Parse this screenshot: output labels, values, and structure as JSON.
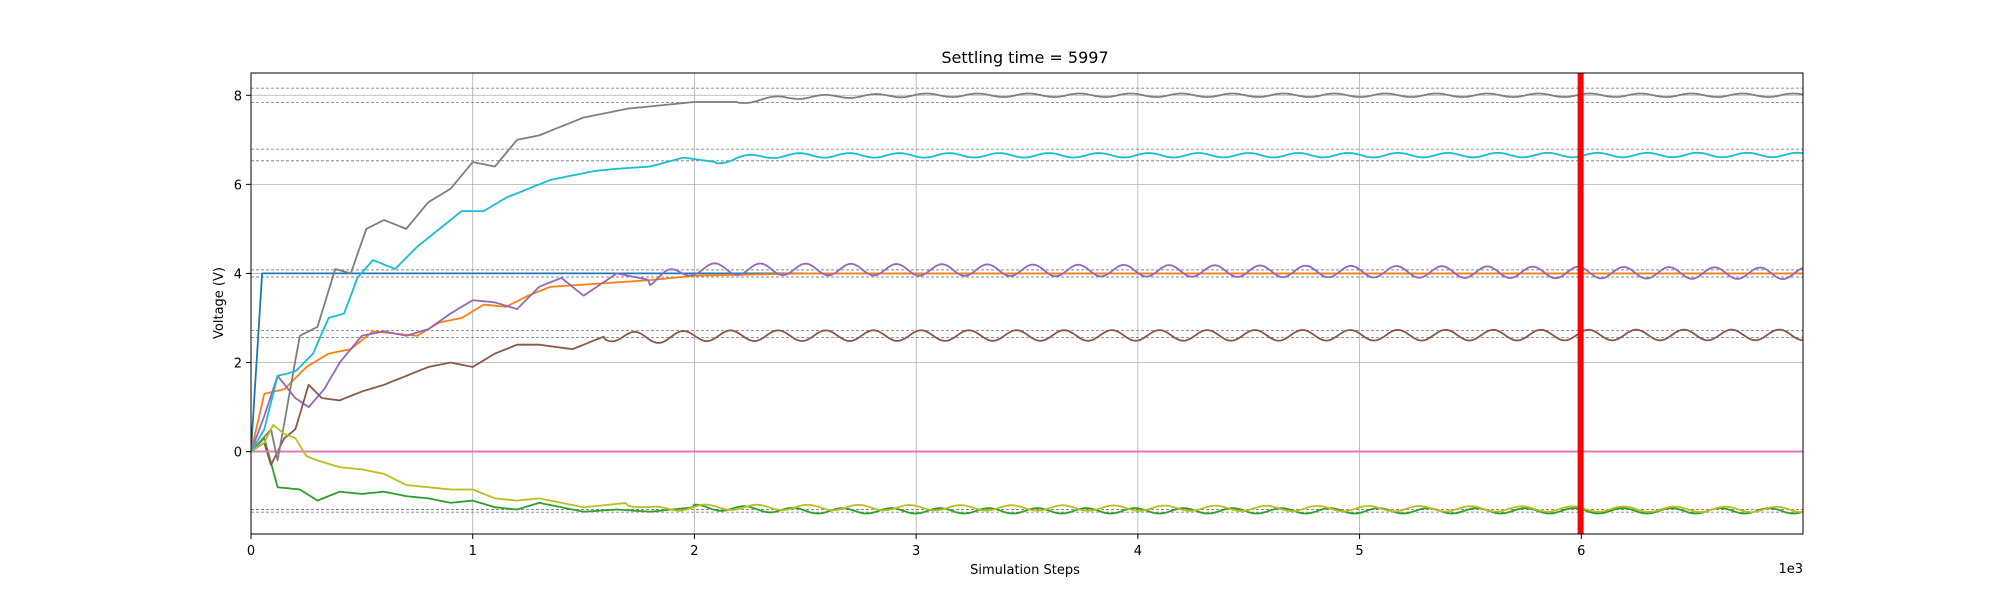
{
  "chart_data": {
    "type": "line",
    "title": "Settling time = 5997",
    "xlabel": "Simulation Steps",
    "ylabel": "Voltage (V)",
    "x_offset_label": "1e3",
    "xlim": [
      0,
      7000
    ],
    "ylim": [
      -1.85,
      8.5
    ],
    "xticks": [
      0,
      1000,
      2000,
      3000,
      4000,
      5000,
      6000
    ],
    "xtick_labels": [
      "0",
      "1",
      "2",
      "3",
      "4",
      "5",
      "6"
    ],
    "yticks": [
      0,
      2,
      4,
      6,
      8
    ],
    "ytick_labels": [
      "0",
      "2",
      "4",
      "6",
      "8"
    ],
    "grid": true,
    "settling_marker": {
      "x": 5997,
      "color": "#ff0000"
    },
    "tolerance_bands": [
      {
        "lower": 7.84,
        "upper": 8.16
      },
      {
        "lower": 6.53,
        "upper": 6.79
      },
      {
        "lower": 3.92,
        "upper": 4.08
      },
      {
        "lower": 2.56,
        "upper": 2.72
      },
      {
        "lower": -1.36,
        "upper": -1.3
      }
    ],
    "series": [
      {
        "color": "#1f77b4",
        "points": [
          [
            0,
            0
          ],
          [
            50,
            4.0
          ],
          [
            7000,
            4.0
          ]
        ]
      },
      {
        "color": "#ff7f0e",
        "points": [
          [
            0,
            0
          ],
          [
            60,
            1.3
          ],
          [
            150,
            1.4
          ],
          [
            250,
            1.9
          ],
          [
            350,
            2.2
          ],
          [
            450,
            2.3
          ],
          [
            550,
            2.7
          ],
          [
            650,
            2.65
          ],
          [
            750,
            2.6
          ],
          [
            850,
            2.9
          ],
          [
            950,
            3.0
          ],
          [
            1050,
            3.3
          ],
          [
            1150,
            3.25
          ],
          [
            1250,
            3.5
          ],
          [
            1350,
            3.7
          ],
          [
            1500,
            3.75
          ],
          [
            1650,
            3.8
          ],
          [
            1800,
            3.85
          ],
          [
            2000,
            3.95
          ],
          [
            2500,
            4.0
          ],
          [
            7000,
            4.0
          ]
        ]
      },
      {
        "color": "#2ca02c",
        "points": [
          [
            0,
            0
          ],
          [
            60,
            0.3
          ],
          [
            120,
            -0.8
          ],
          [
            220,
            -0.85
          ],
          [
            300,
            -1.1
          ],
          [
            400,
            -0.9
          ],
          [
            500,
            -0.95
          ],
          [
            600,
            -0.9
          ],
          [
            700,
            -1.0
          ],
          [
            800,
            -1.05
          ],
          [
            900,
            -1.15
          ],
          [
            1000,
            -1.1
          ],
          [
            1100,
            -1.25
          ],
          [
            1200,
            -1.3
          ],
          [
            1300,
            -1.15
          ],
          [
            1400,
            -1.25
          ],
          [
            1500,
            -1.35
          ],
          [
            1650,
            -1.3
          ],
          [
            1800,
            -1.35
          ],
          [
            2000,
            -1.25
          ],
          [
            2500,
            -1.33
          ],
          [
            7000,
            -1.33
          ]
        ],
        "osc": {
          "start": 2000,
          "amp": 0.06,
          "period": 220,
          "phase": 0.8
        }
      },
      {
        "color": "#d62728",
        "points": [
          [
            0,
            0
          ],
          [
            7000,
            0
          ]
        ]
      },
      {
        "color": "#9467bd",
        "points": [
          [
            0,
            0
          ],
          [
            60,
            0.8
          ],
          [
            120,
            1.7
          ],
          [
            200,
            1.2
          ],
          [
            260,
            1.0
          ],
          [
            330,
            1.4
          ],
          [
            400,
            2.0
          ],
          [
            500,
            2.6
          ],
          [
            600,
            2.7
          ],
          [
            700,
            2.6
          ],
          [
            800,
            2.75
          ],
          [
            900,
            3.1
          ],
          [
            1000,
            3.4
          ],
          [
            1100,
            3.35
          ],
          [
            1200,
            3.2
          ],
          [
            1300,
            3.7
          ],
          [
            1400,
            3.9
          ],
          [
            1500,
            3.5
          ],
          [
            1650,
            4.0
          ],
          [
            1800,
            3.85
          ],
          [
            2000,
            4.1
          ],
          [
            7000,
            4.0
          ]
        ],
        "osc": {
          "start": 1800,
          "amp": 0.13,
          "period": 205,
          "phase": 0.3
        }
      },
      {
        "color": "#8c564b",
        "points": [
          [
            0,
            0
          ],
          [
            60,
            0.2
          ],
          [
            90,
            -0.3
          ],
          [
            150,
            0.3
          ],
          [
            200,
            0.5
          ],
          [
            260,
            1.5
          ],
          [
            320,
            1.2
          ],
          [
            400,
            1.15
          ],
          [
            500,
            1.35
          ],
          [
            600,
            1.5
          ],
          [
            700,
            1.7
          ],
          [
            800,
            1.9
          ],
          [
            900,
            2.0
          ],
          [
            1000,
            1.9
          ],
          [
            1100,
            2.2
          ],
          [
            1200,
            2.4
          ],
          [
            1300,
            2.4
          ],
          [
            1450,
            2.3
          ],
          [
            1600,
            2.6
          ],
          [
            1800,
            2.55
          ],
          [
            2000,
            2.6
          ],
          [
            7000,
            2.62
          ]
        ],
        "osc": {
          "start": 1600,
          "amp": 0.12,
          "period": 215,
          "phase": 1.2
        }
      },
      {
        "color": "#e377c2",
        "points": [
          [
            0,
            0
          ],
          [
            7000,
            0
          ]
        ]
      },
      {
        "color": "#7f7f7f",
        "points": [
          [
            0,
            0
          ],
          [
            90,
            0.5
          ],
          [
            120,
            -0.2
          ],
          [
            170,
            1.2
          ],
          [
            220,
            2.6
          ],
          [
            300,
            2.8
          ],
          [
            380,
            4.1
          ],
          [
            450,
            4.0
          ],
          [
            520,
            5.0
          ],
          [
            600,
            5.2
          ],
          [
            700,
            5.0
          ],
          [
            800,
            5.6
          ],
          [
            900,
            5.9
          ],
          [
            1000,
            6.5
          ],
          [
            1100,
            6.4
          ],
          [
            1200,
            7.0
          ],
          [
            1300,
            7.1
          ],
          [
            1400,
            7.3
          ],
          [
            1500,
            7.5
          ],
          [
            1600,
            7.6
          ],
          [
            1700,
            7.7
          ],
          [
            1800,
            7.75
          ],
          [
            1900,
            7.8
          ],
          [
            2000,
            7.85
          ],
          [
            2200,
            7.85
          ],
          [
            2400,
            7.95
          ],
          [
            2700,
            7.98
          ],
          [
            3000,
            8.0
          ],
          [
            7000,
            8.0
          ]
        ],
        "osc": {
          "start": 2200,
          "amp": 0.04,
          "period": 230,
          "phase": 0.0
        }
      },
      {
        "color": "#bcbd22",
        "points": [
          [
            0,
            0
          ],
          [
            60,
            0.2
          ],
          [
            100,
            0.6
          ],
          [
            150,
            0.4
          ],
          [
            200,
            0.3
          ],
          [
            250,
            -0.1
          ],
          [
            300,
            -0.2
          ],
          [
            400,
            -0.35
          ],
          [
            500,
            -0.4
          ],
          [
            600,
            -0.5
          ],
          [
            700,
            -0.75
          ],
          [
            800,
            -0.8
          ],
          [
            900,
            -0.85
          ],
          [
            1000,
            -0.85
          ],
          [
            1100,
            -1.05
          ],
          [
            1200,
            -1.1
          ],
          [
            1300,
            -1.05
          ],
          [
            1400,
            -1.15
          ],
          [
            1500,
            -1.25
          ],
          [
            1600,
            -1.2
          ],
          [
            1700,
            -1.15
          ],
          [
            1800,
            -1.3
          ],
          [
            2000,
            -1.25
          ],
          [
            7000,
            -1.3
          ]
        ],
        "osc": {
          "start": 1700,
          "amp": 0.06,
          "period": 230,
          "phase": 2.1
        }
      },
      {
        "color": "#17becf",
        "points": [
          [
            0,
            0
          ],
          [
            60,
            0.5
          ],
          [
            120,
            1.7
          ],
          [
            200,
            1.8
          ],
          [
            280,
            2.2
          ],
          [
            350,
            3.0
          ],
          [
            420,
            3.1
          ],
          [
            480,
            3.9
          ],
          [
            550,
            4.3
          ],
          [
            650,
            4.1
          ],
          [
            750,
            4.6
          ],
          [
            850,
            5.0
          ],
          [
            950,
            5.4
          ],
          [
            1050,
            5.4
          ],
          [
            1150,
            5.7
          ],
          [
            1250,
            5.9
          ],
          [
            1350,
            6.1
          ],
          [
            1450,
            6.2
          ],
          [
            1550,
            6.3
          ],
          [
            1650,
            6.35
          ],
          [
            1800,
            6.4
          ],
          [
            1950,
            6.6
          ],
          [
            2100,
            6.5
          ],
          [
            2200,
            6.6
          ],
          [
            2400,
            6.65
          ],
          [
            7000,
            6.66
          ]
        ],
        "osc": {
          "start": 2100,
          "amp": 0.05,
          "period": 225,
          "phase": 1.6
        }
      }
    ]
  }
}
